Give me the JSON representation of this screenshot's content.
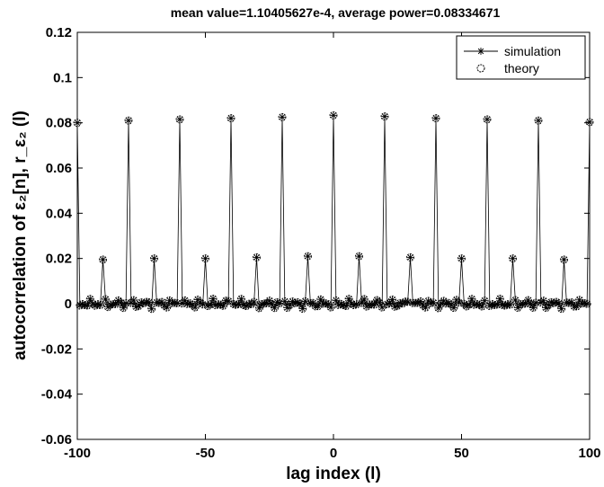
{
  "chart_data": {
    "type": "line",
    "title": "mean value=1.10405627e-4, average power=0.08334671",
    "xlabel": "lag index (l)",
    "ylabel": "autocorrelation of ε₂[n], r_ε₂ (l)",
    "xlim": [
      -100,
      100
    ],
    "ylim": [
      -0.06,
      0.12
    ],
    "xticks": [
      -100,
      -50,
      0,
      50,
      100
    ],
    "yticks": [
      -0.06,
      -0.04,
      -0.02,
      0,
      0.02,
      0.04,
      0.06,
      0.08,
      0.1,
      0.12
    ],
    "ytick_labels": [
      "-0.06",
      "-0.04",
      "-0.02",
      "0",
      "0.02",
      "0.04",
      "0.06",
      "0.08",
      "0.1",
      "0.12"
    ],
    "grid": false,
    "legend_position": "top-right",
    "series": [
      {
        "name": "simulation",
        "marker": "asterisk",
        "line": "solid"
      },
      {
        "name": "theory",
        "marker": "circle",
        "line": "none"
      }
    ],
    "peaks": {
      "x": [
        -100,
        -90,
        -80,
        -70,
        -60,
        -50,
        -40,
        -30,
        -20,
        -10,
        0,
        10,
        20,
        30,
        40,
        50,
        60,
        70,
        80,
        90,
        100
      ],
      "y": [
        0.08,
        0.0195,
        0.081,
        0.02,
        0.0815,
        0.02,
        0.082,
        0.0205,
        0.0825,
        0.021,
        0.0833,
        0.021,
        0.0828,
        0.0205,
        0.082,
        0.02,
        0.0815,
        0.02,
        0.081,
        0.0195,
        0.0803
      ]
    },
    "baseline_fluctuation": 0.002
  }
}
